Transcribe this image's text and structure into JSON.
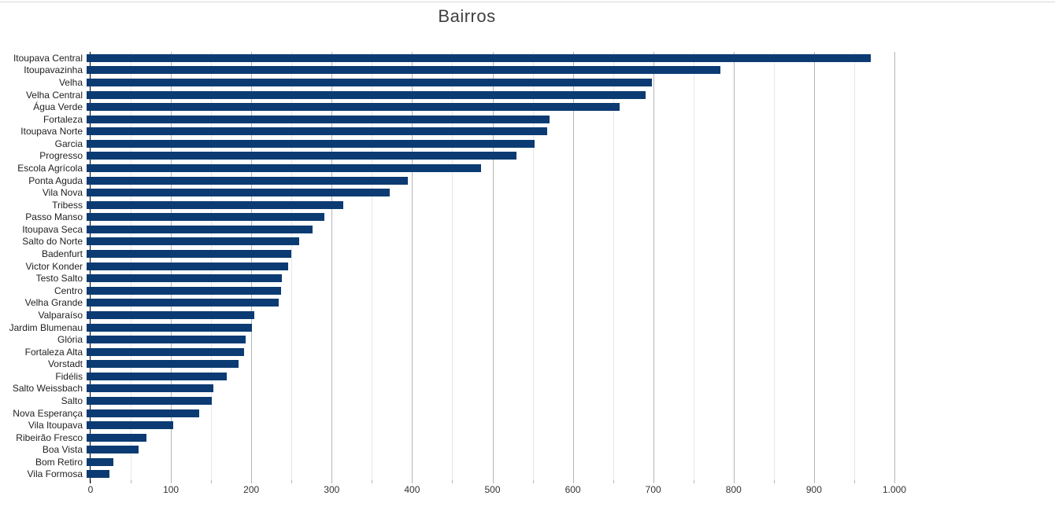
{
  "chart_data": {
    "type": "bar",
    "orientation": "horizontal",
    "title": "Bairros",
    "xlabel": "",
    "ylabel": "",
    "xlim": [
      0,
      1000
    ],
    "grid": "vertical, minor every 50 (light), major every 100 (darker)",
    "legend": "none",
    "categories": [
      "Itoupava Central",
      "Itoupavazinha",
      "Velha",
      "Velha Central",
      "Água Verde",
      "Fortaleza",
      "Itoupava Norte",
      "Garcia",
      "Progresso",
      "Escola Agrícola",
      "Ponta Aguda",
      "Vila Nova",
      "Tribess",
      "Passo Manso",
      "Itoupava Seca",
      "Salto do Norte",
      "Badenfurt",
      "Victor Konder",
      "Testo Salto",
      "Centro",
      "Velha Grande",
      "Valparaíso",
      "Jardim Blumenau",
      "Glória",
      "Fortaleza Alta",
      "Vorstadt",
      "Fidélis",
      "Salto Weissbach",
      "Salto",
      "Nova Esperança",
      "Vila Itoupava",
      "Ribeirão Fresco",
      "Boa Vista",
      "Bom Retiro",
      "Vila Formosa"
    ],
    "values": [
      975,
      788,
      703,
      695,
      663,
      576,
      573,
      557,
      535,
      491,
      400,
      377,
      319,
      296,
      281,
      264,
      255,
      251,
      243,
      242,
      239,
      209,
      206,
      198,
      196,
      189,
      174,
      158,
      156,
      140,
      108,
      74,
      65,
      33,
      28
    ],
    "x_tick_values": [
      0,
      100,
      200,
      300,
      400,
      500,
      600,
      700,
      800,
      900,
      1000
    ],
    "x_tick_labels": [
      "0",
      "100",
      "200",
      "300",
      "400",
      "500",
      "600",
      "700",
      "800",
      "900",
      "1.000"
    ],
    "minor_tick_step": 50,
    "colors": {
      "bar": "#0b3b72",
      "grid_minor": "#e7e7e7",
      "grid_major": "#b5b5b5",
      "axis_line": "#000000",
      "title_text": "#404040",
      "category_text": "#1f1f1f",
      "tick_text": "#333333",
      "top_rule": "#d9d9d9",
      "background": "#ffffff"
    }
  }
}
